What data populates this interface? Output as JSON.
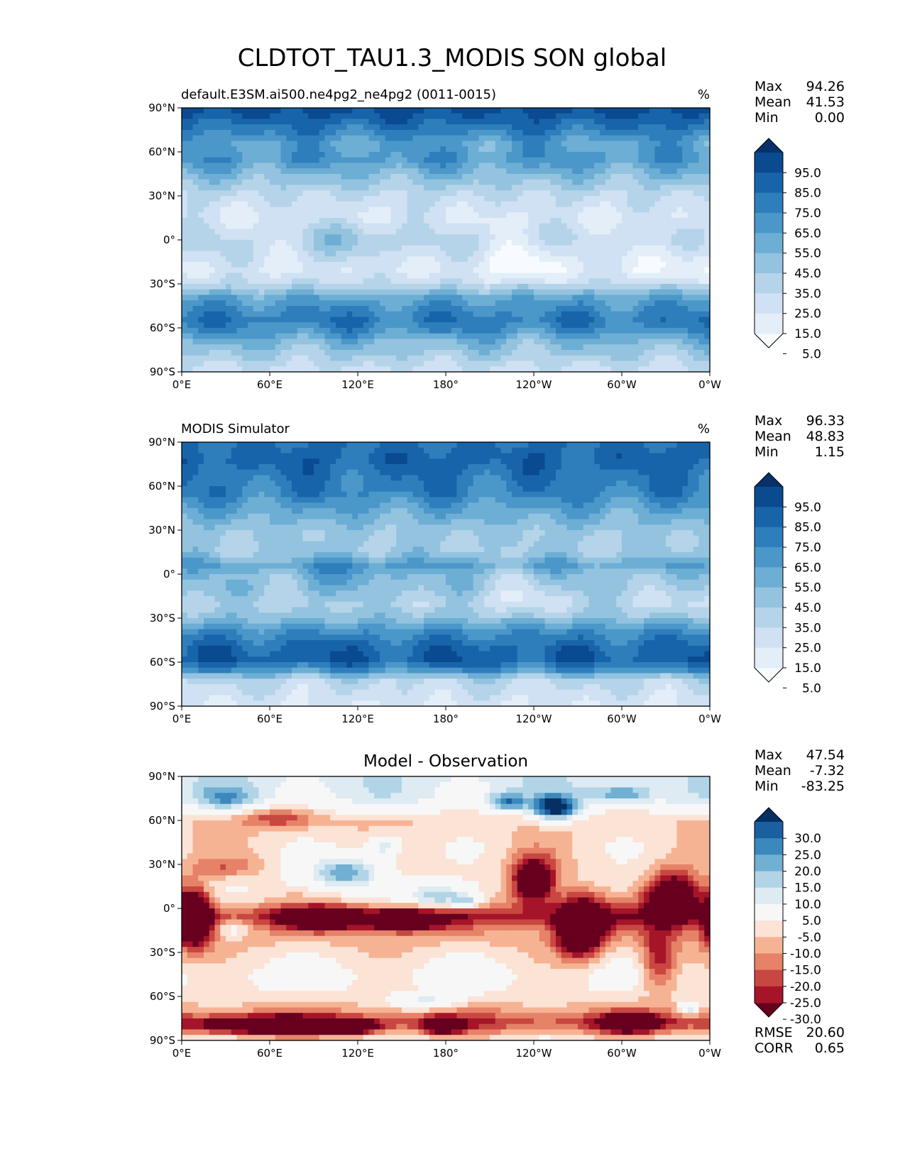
{
  "figure_title": "CLDTOT_TAU1.3_MODIS SON global",
  "xticks": [
    "0°E",
    "60°E",
    "120°E",
    "180°",
    "120°W",
    "60°W",
    "0°W"
  ],
  "yticks": [
    "90°N",
    "60°N",
    "30°N",
    "0°",
    "30°S",
    "60°S",
    "90°S"
  ],
  "stat_labels": [
    "Max",
    "Mean",
    "Min"
  ],
  "colors": {
    "blues": [
      "#f7fbff",
      "#e3eef9",
      "#cfe1f2",
      "#b5d4e9",
      "#93c3df",
      "#6daed5",
      "#4b97c9",
      "#2f7ebc",
      "#1864aa",
      "#0a4a90",
      "#08306b"
    ],
    "rdbu": [
      "#67001f",
      "#a51429",
      "#c94741",
      "#e58267",
      "#f6b394",
      "#fbe3d6",
      "#f7f7f7",
      "#deebf2",
      "#b1d5e7",
      "#71b0d3",
      "#3b88be",
      "#1a5fa0",
      "#053061"
    ]
  },
  "chart_data": [
    {
      "type": "heatmap",
      "title": "default.E3SM.ai500.ne4pg2_ne4pg2 (0011-0015)",
      "units": "%",
      "stats": {
        "Max": "94.26",
        "Mean": "41.53",
        "Min": "0.00"
      },
      "colorbar": {
        "ticks": [
          "95.0",
          "85.0",
          "75.0",
          "65.0",
          "55.0",
          "45.0",
          "35.0",
          "25.0",
          "15.0",
          "5.0"
        ],
        "extend": "both"
      },
      "levels": [
        0,
        5,
        15,
        25,
        35,
        45,
        55,
        65,
        75,
        85,
        95,
        100
      ],
      "xlim": [
        0,
        360
      ],
      "ylim": [
        -90,
        90
      ],
      "lat_profile": [
        [
          90,
          90
        ],
        [
          78,
          75
        ],
        [
          65,
          55
        ],
        [
          55,
          60
        ],
        [
          45,
          45
        ],
        [
          30,
          25
        ],
        [
          15,
          15
        ],
        [
          0,
          25
        ],
        [
          -10,
          22
        ],
        [
          -20,
          15
        ],
        [
          -30,
          25
        ],
        [
          -40,
          55
        ],
        [
          -48,
          65
        ],
        [
          -55,
          72
        ],
        [
          -62,
          62
        ],
        [
          -70,
          45
        ],
        [
          -78,
          35
        ],
        [
          -90,
          20
        ]
      ]
    },
    {
      "type": "heatmap",
      "title": "MODIS Simulator",
      "units": "%",
      "stats": {
        "Max": "96.33",
        "Mean": "48.83",
        "Min": "1.15"
      },
      "colorbar": {
        "ticks": [
          "95.0",
          "85.0",
          "75.0",
          "65.0",
          "55.0",
          "45.0",
          "35.0",
          "25.0",
          "15.0",
          "5.0"
        ],
        "extend": "both"
      },
      "levels": [
        0,
        5,
        15,
        25,
        35,
        45,
        55,
        65,
        75,
        85,
        95,
        100
      ],
      "xlim": [
        0,
        360
      ],
      "ylim": [
        -90,
        90
      ],
      "lat_profile": [
        [
          90,
          75
        ],
        [
          78,
          80
        ],
        [
          65,
          72
        ],
        [
          55,
          68
        ],
        [
          45,
          55
        ],
        [
          30,
          38
        ],
        [
          15,
          35
        ],
        [
          5,
          55
        ],
        [
          0,
          42
        ],
        [
          -10,
          40
        ],
        [
          -20,
          32
        ],
        [
          -30,
          42
        ],
        [
          -40,
          65
        ],
        [
          -50,
          78
        ],
        [
          -58,
          82
        ],
        [
          -65,
          65
        ],
        [
          -72,
          28
        ],
        [
          -80,
          22
        ],
        [
          -90,
          15
        ]
      ]
    },
    {
      "type": "heatmap",
      "title": "Model - Observation",
      "stats": {
        "Max": "47.54",
        "Mean": "-7.32",
        "Min": "-83.25"
      },
      "extra_stats": {
        "RMSE": "20.60",
        "CORR": "0.65"
      },
      "colorbar": {
        "ticks": [
          "30.0",
          "25.0",
          "20.0",
          "15.0",
          "10.0",
          "5.0",
          "-5.0",
          "-10.0",
          "-15.0",
          "-20.0",
          "-25.0",
          "-30.0"
        ],
        "extend": "both"
      },
      "levels": [
        -50,
        -30,
        -25,
        -20,
        -15,
        -10,
        -5,
        5,
        10,
        15,
        20,
        25,
        30,
        50
      ],
      "xlim": [
        0,
        360
      ],
      "ylim": [
        -90,
        90
      ],
      "lat_profile": [
        [
          90,
          8
        ],
        [
          75,
          6
        ],
        [
          60,
          -10
        ],
        [
          45,
          -8
        ],
        [
          30,
          -8
        ],
        [
          15,
          -5
        ],
        [
          5,
          -10
        ],
        [
          -5,
          -25
        ],
        [
          -15,
          -15
        ],
        [
          -30,
          -8
        ],
        [
          -45,
          -3
        ],
        [
          -60,
          -6
        ],
        [
          -70,
          -15
        ],
        [
          -78,
          -25
        ],
        [
          -90,
          -5
        ]
      ],
      "anomalies": [
        {
          "lon": 112,
          "lat": 25,
          "r": [
            25,
            11
          ],
          "v": 26
        },
        {
          "lon": 138,
          "lat": 42,
          "r": [
            12,
            8
          ],
          "v": 18
        },
        {
          "lon": 175,
          "lat": 8,
          "r": [
            20,
            8
          ],
          "v": 24
        },
        {
          "lon": 195,
          "lat": 5,
          "r": [
            10,
            5
          ],
          "v": 18
        },
        {
          "lon": 255,
          "lat": 68,
          "r": [
            15,
            8
          ],
          "v": 40
        },
        {
          "lon": 222,
          "lat": 72,
          "r": [
            12,
            6
          ],
          "v": 22
        },
        {
          "lon": 30,
          "lat": 75,
          "r": [
            18,
            8
          ],
          "v": 14
        },
        {
          "lon": 300,
          "lat": 78,
          "r": [
            20,
            6
          ],
          "v": 16
        },
        {
          "lon": 168,
          "lat": -64,
          "r": [
            22,
            5
          ],
          "v": 16
        },
        {
          "lon": 345,
          "lat": -68,
          "r": [
            6,
            4
          ],
          "v": 22
        },
        {
          "lon": 35,
          "lat": -14,
          "r": [
            10,
            6
          ],
          "v": 12
        },
        {
          "lon": 240,
          "lat": 18,
          "r": [
            15,
            16
          ],
          "v": -42
        },
        {
          "lon": 272,
          "lat": -12,
          "r": [
            16,
            20
          ],
          "v": -48
        },
        {
          "lon": 335,
          "lat": 8,
          "r": [
            18,
            16
          ],
          "v": -45
        },
        {
          "lon": 8,
          "lat": -6,
          "r": [
            12,
            20
          ],
          "v": -45
        },
        {
          "lon": 95,
          "lat": -7,
          "r": [
            25,
            7
          ],
          "v": -38
        },
        {
          "lon": 150,
          "lat": -8,
          "r": [
            28,
            7
          ],
          "v": -34
        },
        {
          "lon": 60,
          "lat": -80,
          "r": [
            45,
            6
          ],
          "v": -35
        },
        {
          "lon": 115,
          "lat": -81,
          "r": [
            18,
            5
          ],
          "v": -30
        },
        {
          "lon": 178,
          "lat": -80,
          "r": [
            12,
            5
          ],
          "v": -38
        },
        {
          "lon": 305,
          "lat": -78,
          "r": [
            18,
            6
          ],
          "v": -38
        },
        {
          "lon": 325,
          "lat": -35,
          "r": [
            12,
            22
          ],
          "v": -22
        },
        {
          "lon": 65,
          "lat": 62,
          "r": [
            25,
            7
          ],
          "v": -15
        },
        {
          "lon": 30,
          "lat": 28,
          "r": [
            22,
            7
          ],
          "v": -10
        }
      ]
    }
  ]
}
